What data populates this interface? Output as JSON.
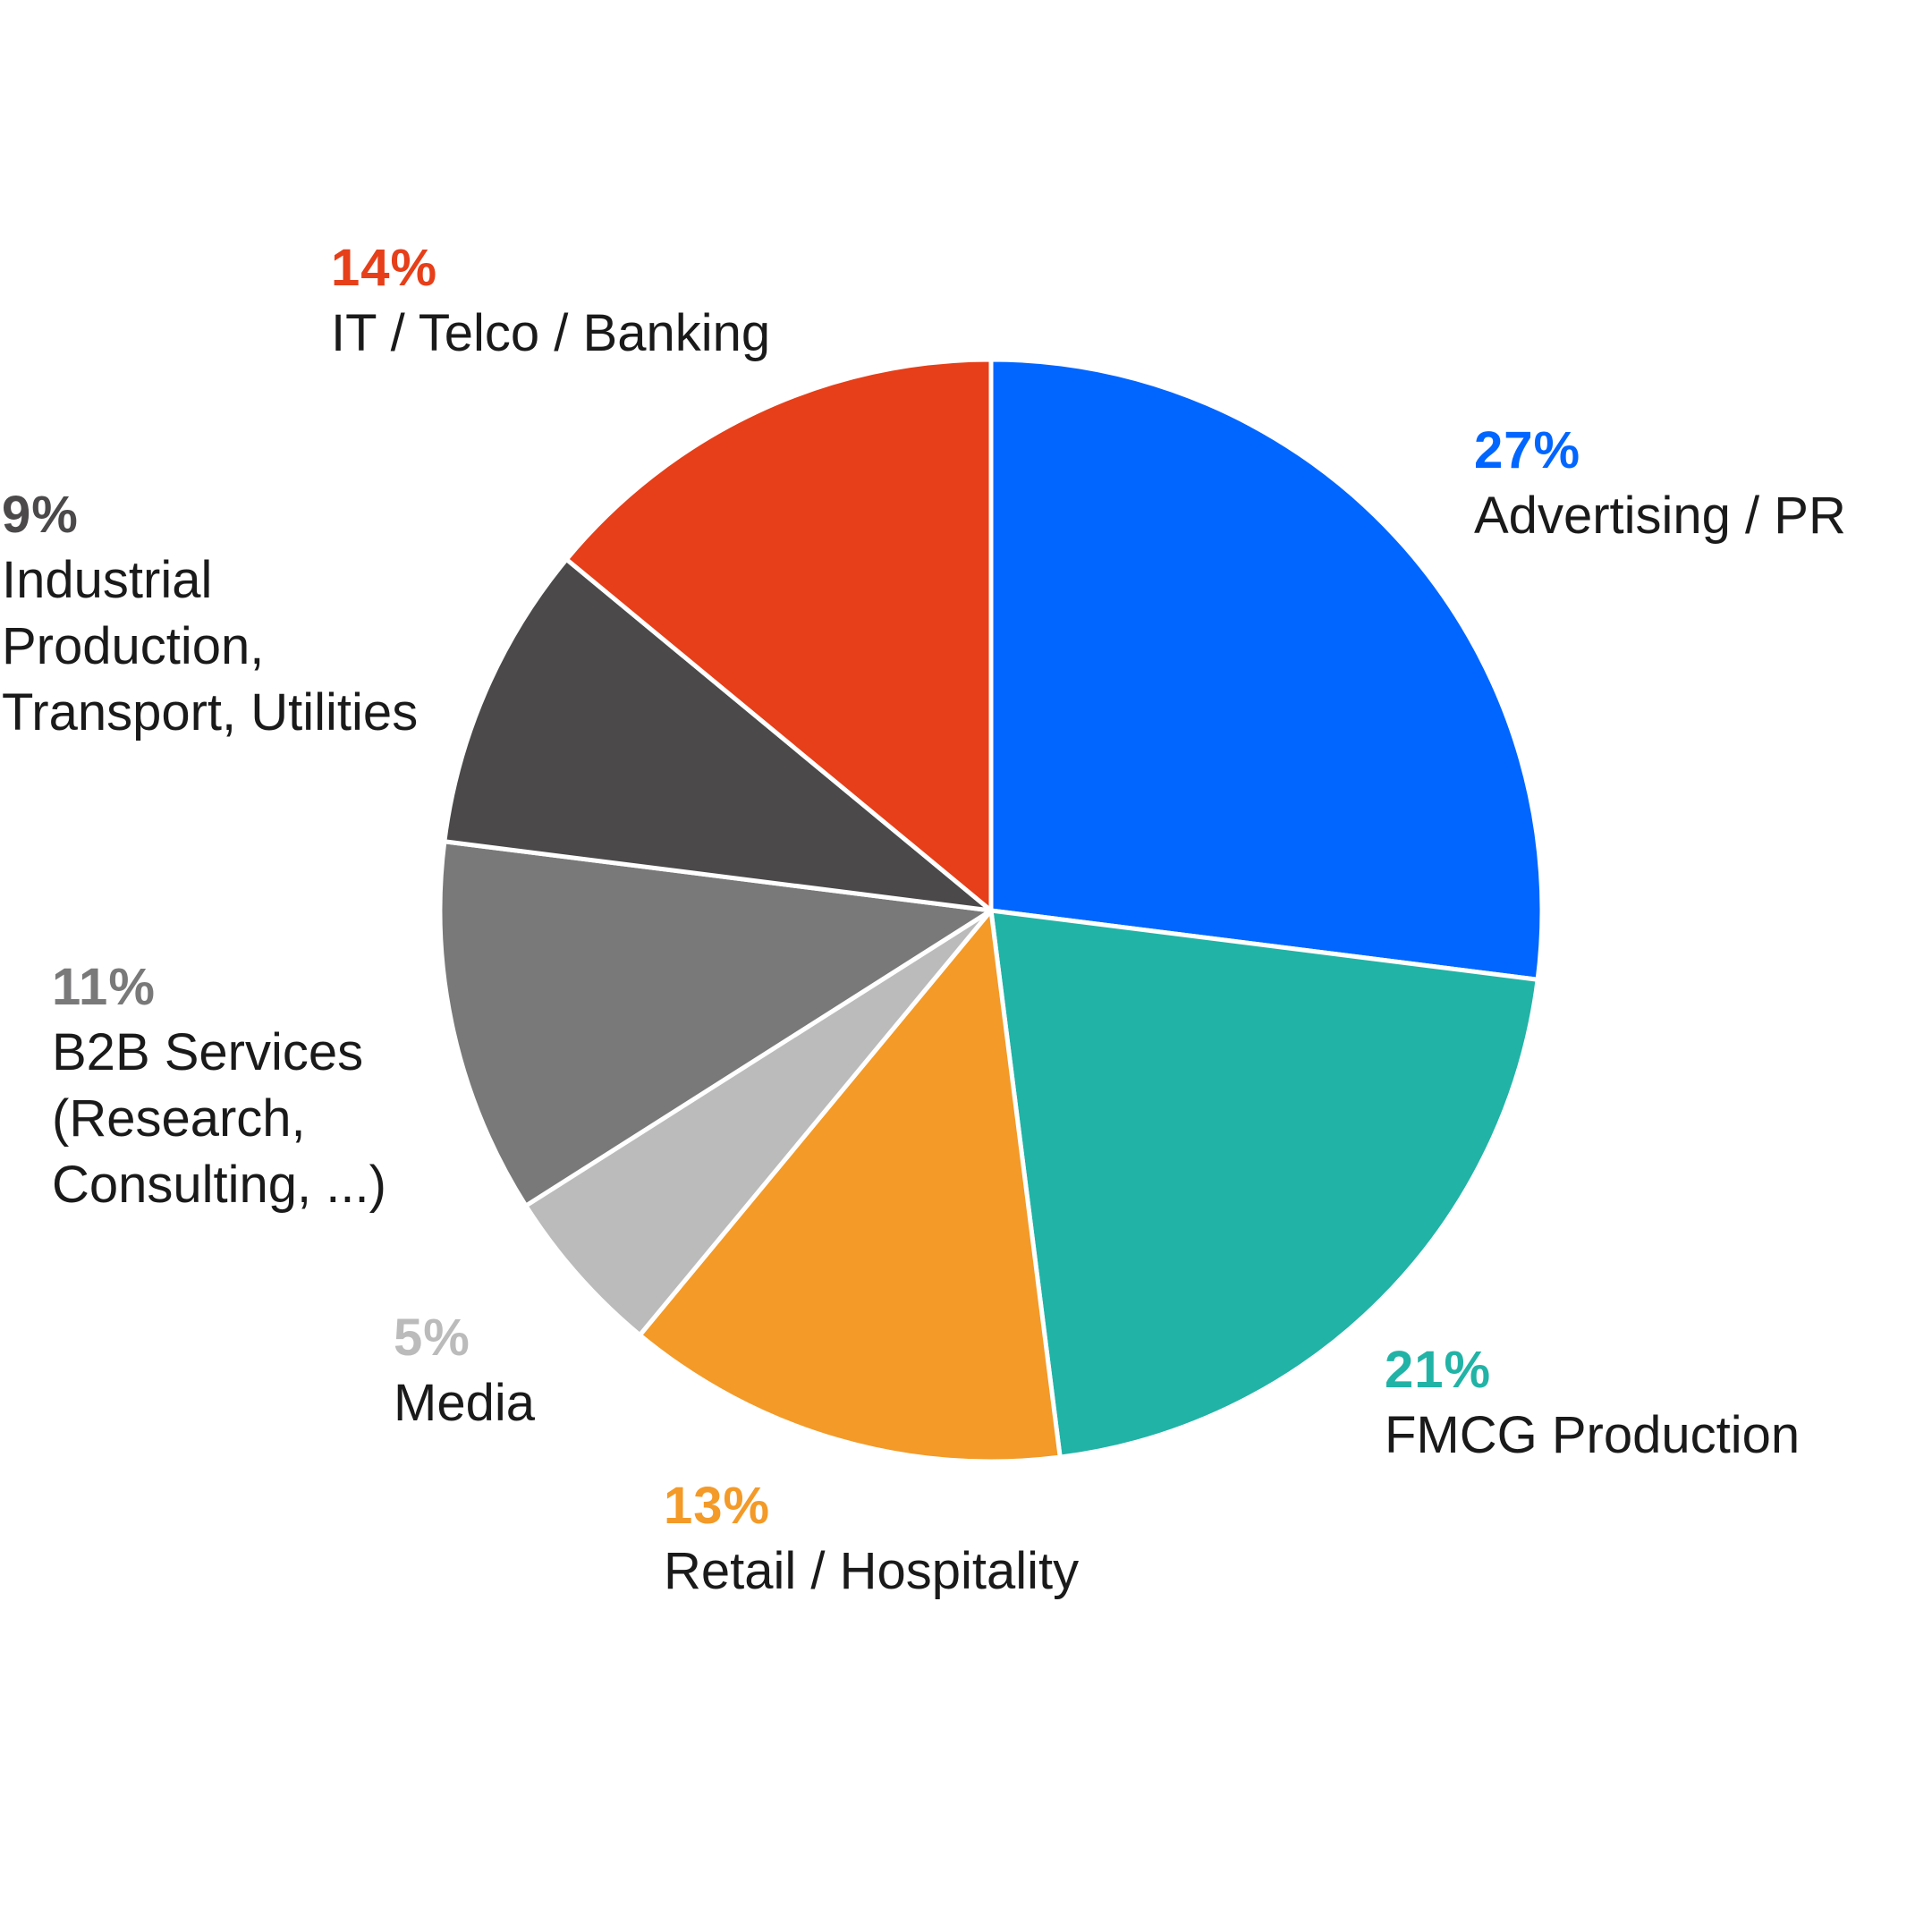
{
  "chart_data": {
    "type": "pie",
    "slices": [
      {
        "label": "Advertising / PR",
        "value": 27,
        "value_label": "27%",
        "color": "#0066ff"
      },
      {
        "label": "FMCG Production",
        "value": 21,
        "value_label": "21%",
        "color": "#21b3a6"
      },
      {
        "label": "Retail / Hospitality",
        "value": 13,
        "value_label": "13%",
        "color": "#f39a28"
      },
      {
        "label": "Media",
        "value": 5,
        "value_label": "5%",
        "color": "#bcbbbc"
      },
      {
        "label": "B2B Services\n(Research,\nConsulting, ...)",
        "value": 11,
        "value_label": "11%",
        "color": "#7a797a"
      },
      {
        "label": "Industrial\nProduction,\nTransport, Utilities",
        "value": 9,
        "value_label": "9%",
        "color": "#4b494a"
      },
      {
        "label": "IT / Telco / Banking",
        "value": 14,
        "value_label": "14%",
        "color": "#e63f19"
      }
    ],
    "start": "12 o'clock",
    "direction": "clockwise",
    "legend": "none (labels placed around the pie)"
  }
}
